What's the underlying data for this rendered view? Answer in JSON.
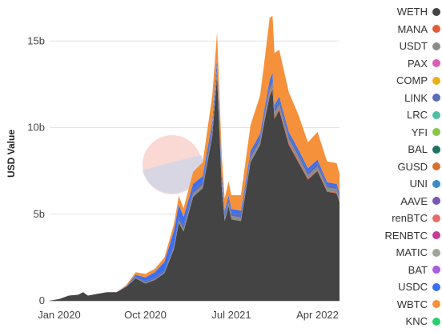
{
  "chart_data": {
    "type": "area",
    "stacked": true,
    "title": "",
    "xlabel": "",
    "ylabel": "USD Value",
    "ylim": [
      0,
      17
    ],
    "yticks": [
      {
        "value": 0,
        "label": "0"
      },
      {
        "value": 5,
        "label": "5b"
      },
      {
        "value": 10,
        "label": "10b"
      },
      {
        "value": 15,
        "label": "15b"
      }
    ],
    "xticks": [
      {
        "t": 0,
        "label": "Jan 2020"
      },
      {
        "t": 9,
        "label": "Oct 2020"
      },
      {
        "t": 18,
        "label": "Jul 2021"
      },
      {
        "t": 27,
        "label": "Apr 2022"
      }
    ],
    "x_range_months_from_jan_2020": [
      -1,
      29.3
    ],
    "grid": true,
    "legend_position": "right",
    "x": [
      -1,
      0,
      1,
      2,
      2.5,
      3,
      4,
      5,
      6,
      7,
      8,
      9,
      10,
      11,
      12,
      12.5,
      13,
      14,
      15,
      16,
      16.5,
      17,
      17.3,
      17.5,
      17.7,
      18,
      19,
      20,
      21,
      21.5,
      22,
      22.3,
      22.5,
      23,
      24,
      25,
      26,
      27,
      28,
      29,
      29.3
    ],
    "series": [
      {
        "name": "WETH",
        "color": "#444444",
        "values": [
          0,
          0.1,
          0.3,
          0.35,
          0.5,
          0.3,
          0.4,
          0.5,
          0.5,
          0.8,
          1.3,
          1.0,
          1.2,
          1.6,
          3.0,
          4.5,
          4.0,
          6.0,
          6.5,
          9.5,
          13.0,
          6.5,
          4.6,
          5.0,
          5.5,
          4.7,
          4.6,
          8.0,
          9.0,
          10.5,
          11.8,
          12.2,
          10.5,
          11.0,
          9.0,
          8.0,
          7.0,
          7.5,
          6.3,
          6.2,
          5.7
        ]
      },
      {
        "name": "MANA",
        "color": "#e45d3a",
        "values": [
          0,
          0,
          0,
          0,
          0,
          0,
          0,
          0,
          0,
          0,
          0,
          0,
          0,
          0,
          0,
          0,
          0,
          0,
          0,
          0,
          0,
          0,
          0,
          0,
          0,
          0,
          0,
          0,
          0,
          0.05,
          0.1,
          0.1,
          0.1,
          0.1,
          0.1,
          0.1,
          0.05,
          0.05,
          0.05,
          0.05,
          0.05
        ]
      },
      {
        "name": "USDT",
        "color": "#8b8b8b",
        "values": [
          0,
          0,
          0,
          0,
          0,
          0,
          0,
          0,
          0,
          0,
          0.05,
          0.05,
          0.05,
          0.05,
          0.1,
          0.15,
          0.15,
          0.2,
          0.2,
          0.25,
          0.3,
          0.25,
          0.2,
          0.2,
          0.2,
          0.2,
          0.2,
          0.25,
          0.25,
          0.25,
          0.3,
          0.3,
          0.25,
          0.25,
          0.25,
          0.25,
          0.2,
          0.2,
          0.2,
          0.2,
          0.2
        ]
      },
      {
        "name": "PAX",
        "color": "#d65fb3",
        "values": [
          0,
          0,
          0,
          0,
          0,
          0,
          0,
          0,
          0,
          0,
          0,
          0,
          0,
          0,
          0,
          0,
          0,
          0,
          0,
          0,
          0,
          0,
          0,
          0,
          0,
          0,
          0,
          0,
          0,
          0,
          0,
          0,
          0,
          0,
          0,
          0,
          0,
          0,
          0,
          0,
          0
        ]
      },
      {
        "name": "COMP",
        "color": "#e8b11a",
        "values": [
          0,
          0,
          0,
          0,
          0,
          0,
          0,
          0,
          0,
          0,
          0,
          0,
          0,
          0,
          0,
          0,
          0,
          0,
          0,
          0,
          0,
          0,
          0,
          0,
          0,
          0,
          0,
          0,
          0,
          0,
          0,
          0,
          0,
          0,
          0,
          0,
          0,
          0,
          0,
          0,
          0
        ]
      },
      {
        "name": "LINK",
        "color": "#5a6bb8",
        "values": [
          0,
          0,
          0,
          0,
          0,
          0,
          0,
          0,
          0,
          0.05,
          0.05,
          0.1,
          0.1,
          0.1,
          0.15,
          0.2,
          0.2,
          0.2,
          0.2,
          0.3,
          0.35,
          0.3,
          0.2,
          0.2,
          0.2,
          0.2,
          0.2,
          0.2,
          0.2,
          0.25,
          0.3,
          0.3,
          0.25,
          0.25,
          0.2,
          0.2,
          0.2,
          0.2,
          0.15,
          0.15,
          0.15
        ]
      },
      {
        "name": "LRC",
        "color": "#4fbfa0",
        "values": [
          0,
          0,
          0,
          0,
          0,
          0,
          0,
          0,
          0,
          0,
          0,
          0,
          0,
          0,
          0,
          0,
          0,
          0,
          0,
          0,
          0,
          0,
          0,
          0,
          0,
          0,
          0,
          0,
          0,
          0,
          0,
          0,
          0,
          0,
          0,
          0,
          0,
          0,
          0,
          0,
          0
        ]
      },
      {
        "name": "YFI",
        "color": "#8cc54a",
        "values": [
          0,
          0,
          0,
          0,
          0,
          0,
          0,
          0,
          0,
          0,
          0,
          0,
          0,
          0,
          0,
          0,
          0,
          0,
          0,
          0,
          0,
          0,
          0,
          0,
          0,
          0,
          0,
          0,
          0,
          0,
          0,
          0,
          0,
          0,
          0,
          0,
          0,
          0,
          0,
          0,
          0
        ]
      },
      {
        "name": "BAL",
        "color": "#1f6f63",
        "values": [
          0,
          0,
          0,
          0,
          0,
          0,
          0,
          0,
          0,
          0,
          0,
          0,
          0,
          0,
          0,
          0,
          0,
          0,
          0,
          0,
          0,
          0,
          0,
          0,
          0,
          0,
          0,
          0,
          0,
          0,
          0,
          0,
          0,
          0,
          0,
          0,
          0,
          0,
          0,
          0,
          0
        ]
      },
      {
        "name": "GUSD",
        "color": "#d9702b",
        "values": [
          0,
          0,
          0,
          0,
          0,
          0,
          0,
          0,
          0,
          0,
          0,
          0,
          0,
          0,
          0,
          0,
          0,
          0,
          0,
          0,
          0,
          0,
          0,
          0,
          0,
          0,
          0,
          0,
          0,
          0,
          0,
          0,
          0,
          0,
          0,
          0,
          0,
          0,
          0,
          0,
          0
        ]
      },
      {
        "name": "UNI",
        "color": "#3b8bc9",
        "values": [
          0,
          0,
          0,
          0,
          0,
          0,
          0,
          0,
          0,
          0,
          0,
          0,
          0,
          0,
          0,
          0,
          0,
          0,
          0,
          0,
          0,
          0,
          0,
          0,
          0,
          0,
          0,
          0,
          0,
          0,
          0,
          0,
          0,
          0,
          0,
          0,
          0,
          0,
          0,
          0,
          0
        ]
      },
      {
        "name": "AAVE",
        "color": "#7a56b3",
        "values": [
          0,
          0,
          0,
          0,
          0,
          0,
          0,
          0,
          0,
          0,
          0,
          0,
          0,
          0,
          0,
          0,
          0,
          0,
          0,
          0,
          0,
          0,
          0,
          0,
          0,
          0,
          0,
          0,
          0,
          0,
          0,
          0,
          0,
          0,
          0,
          0,
          0,
          0,
          0,
          0,
          0
        ]
      },
      {
        "name": "renBTC",
        "color": "#e66b6b",
        "values": [
          0,
          0,
          0,
          0,
          0,
          0,
          0,
          0,
          0,
          0,
          0,
          0,
          0,
          0,
          0,
          0,
          0,
          0,
          0,
          0,
          0,
          0,
          0,
          0,
          0,
          0,
          0,
          0,
          0,
          0,
          0,
          0,
          0,
          0,
          0,
          0,
          0,
          0,
          0,
          0,
          0
        ]
      },
      {
        "name": "RENBTC",
        "color": "#c33c98",
        "values": [
          0,
          0,
          0,
          0,
          0,
          0,
          0,
          0,
          0,
          0,
          0,
          0,
          0,
          0,
          0,
          0,
          0,
          0,
          0,
          0,
          0,
          0,
          0,
          0,
          0,
          0,
          0,
          0,
          0,
          0,
          0,
          0,
          0,
          0,
          0,
          0,
          0,
          0,
          0,
          0,
          0
        ]
      },
      {
        "name": "MATIC",
        "color": "#9ea49a",
        "values": [
          0,
          0,
          0,
          0,
          0,
          0,
          0,
          0,
          0,
          0,
          0,
          0,
          0,
          0,
          0,
          0,
          0,
          0,
          0,
          0,
          0,
          0,
          0,
          0,
          0,
          0,
          0,
          0,
          0,
          0,
          0,
          0,
          0,
          0,
          0,
          0,
          0,
          0,
          0,
          0,
          0
        ]
      },
      {
        "name": "BAT",
        "color": "#a85de0",
        "values": [
          0,
          0,
          0,
          0,
          0,
          0,
          0,
          0,
          0,
          0,
          0,
          0,
          0,
          0,
          0,
          0,
          0,
          0,
          0,
          0,
          0,
          0,
          0,
          0,
          0,
          0,
          0,
          0,
          0,
          0,
          0,
          0,
          0,
          0,
          0,
          0,
          0,
          0,
          0,
          0,
          0
        ]
      },
      {
        "name": "USDC",
        "color": "#3a6ff0",
        "values": [
          0,
          0,
          0,
          0,
          0,
          0,
          0,
          0,
          0,
          0,
          0.1,
          0.2,
          0.3,
          0.5,
          0.8,
          0.7,
          0.5,
          0.35,
          0.3,
          0.3,
          0.35,
          0.3,
          0.2,
          0.2,
          0.2,
          0.2,
          0.2,
          0.2,
          0.2,
          0.2,
          0.25,
          0.25,
          0.2,
          0.2,
          0.2,
          0.2,
          0.2,
          0.2,
          0.15,
          0.15,
          0.15
        ]
      },
      {
        "name": "WBTC",
        "color": "#f5913a",
        "values": [
          0,
          0,
          0,
          0,
          0,
          0,
          0,
          0,
          0,
          0.05,
          0.15,
          0.2,
          0.2,
          0.25,
          0.4,
          0.5,
          0.5,
          0.7,
          0.8,
          1.5,
          1.5,
          1.0,
          0.7,
          0.8,
          0.8,
          0.8,
          0.9,
          1.5,
          2.2,
          2.8,
          3.6,
          3.3,
          3.0,
          2.7,
          2.3,
          2.0,
          1.5,
          1.6,
          1.2,
          1.2,
          1.1
        ]
      },
      {
        "name": "KNC",
        "color": "#2ecc71",
        "values": [
          0,
          0,
          0,
          0,
          0,
          0,
          0,
          0,
          0,
          0,
          0,
          0,
          0,
          0,
          0,
          0,
          0,
          0,
          0,
          0,
          0,
          0,
          0,
          0,
          0,
          0,
          0,
          0,
          0,
          0,
          0,
          0,
          0,
          0,
          0,
          0,
          0,
          0,
          0,
          0,
          0
        ]
      }
    ]
  }
}
